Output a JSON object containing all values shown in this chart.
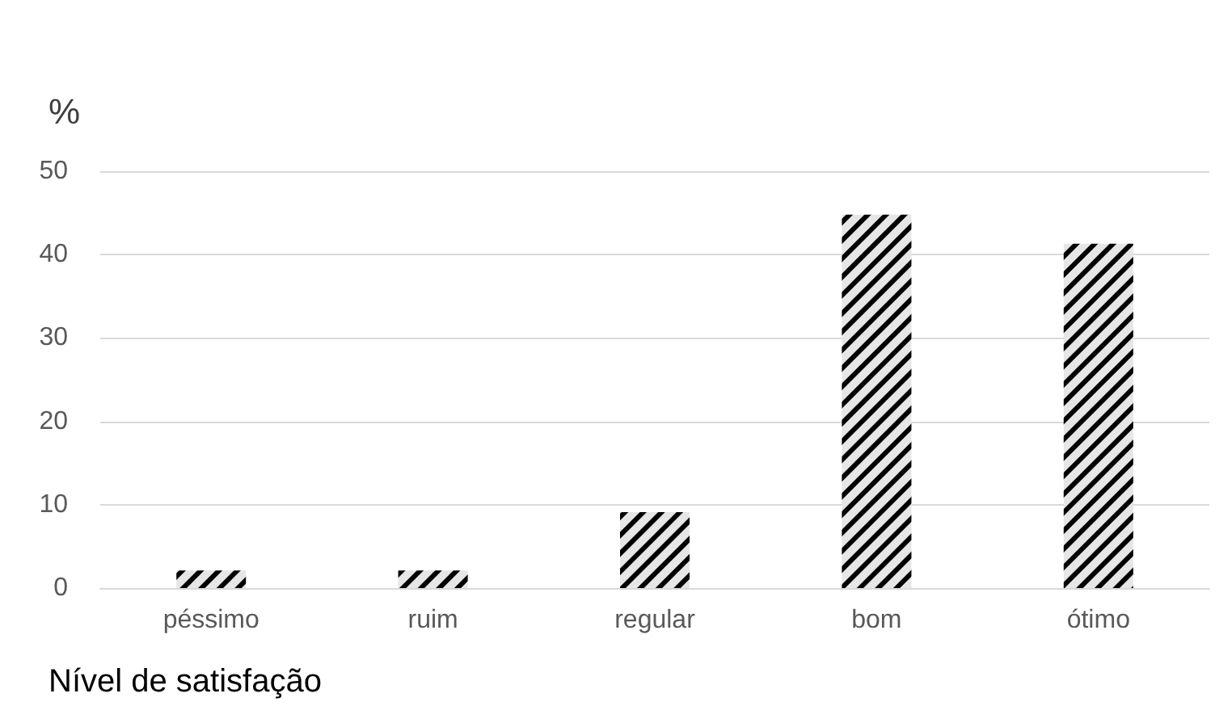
{
  "chart_data": {
    "type": "bar",
    "ylabel": "%",
    "xlabel": "Nível de satisfação",
    "categories": [
      "péssimo",
      "ruim",
      "regular",
      "bom",
      "ótimo"
    ],
    "values": [
      2.1,
      2.1,
      9.1,
      44.8,
      41.3
    ],
    "color": "#e6e6e6",
    "ylim": [
      0,
      50
    ],
    "yticks": [
      0,
      10,
      20,
      30,
      40,
      50
    ],
    "grid": "y"
  }
}
